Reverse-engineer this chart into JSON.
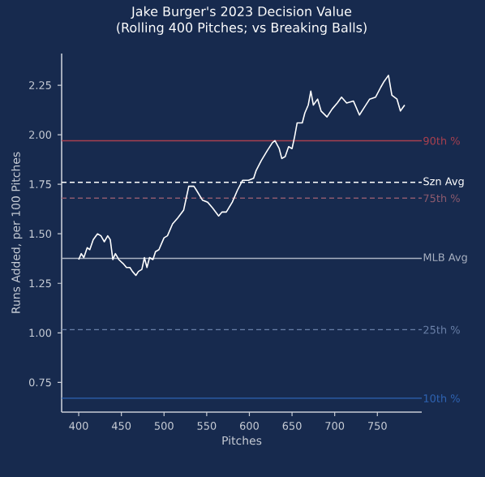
{
  "chart_data": {
    "type": "line",
    "title": "Jake Burger's 2023 Decision Value",
    "subtitle": "(Rolling 400 Pitches; vs Breaking Balls)",
    "xlabel": "Pitches",
    "ylabel": "Runs Added, per 100 Pitches",
    "series": [
      {
        "color": "#ffffff",
        "x": [
          400,
          403,
          406,
          410,
          413,
          417,
          422,
          426,
          430,
          434,
          437,
          440,
          443,
          447,
          452,
          456,
          460,
          463,
          467,
          470,
          474,
          477,
          480,
          483,
          487,
          490,
          494,
          497,
          500,
          504,
          510,
          516,
          523,
          526,
          529,
          535,
          538,
          545,
          551,
          557,
          564,
          568,
          573,
          580,
          586,
          592,
          599,
          605,
          608,
          614,
          621,
          627,
          630,
          635,
          638,
          642,
          646,
          650,
          653,
          656,
          662,
          665,
          669,
          672,
          675,
          680,
          684,
          691,
          697,
          703,
          708,
          714,
          722,
          729,
          735,
          741,
          748,
          754,
          758,
          763,
          767,
          773,
          777,
          782
        ],
        "values": [
          1.37,
          1.4,
          1.38,
          1.43,
          1.42,
          1.47,
          1.5,
          1.49,
          1.46,
          1.49,
          1.47,
          1.37,
          1.4,
          1.37,
          1.35,
          1.33,
          1.33,
          1.31,
          1.29,
          1.31,
          1.32,
          1.38,
          1.33,
          1.38,
          1.37,
          1.41,
          1.42,
          1.45,
          1.48,
          1.49,
          1.55,
          1.58,
          1.62,
          1.68,
          1.74,
          1.74,
          1.72,
          1.67,
          1.66,
          1.63,
          1.59,
          1.61,
          1.61,
          1.66,
          1.72,
          1.77,
          1.77,
          1.78,
          1.82,
          1.87,
          1.92,
          1.96,
          1.97,
          1.93,
          1.88,
          1.89,
          1.94,
          1.93,
          1.99,
          2.06,
          2.06,
          2.11,
          2.15,
          2.22,
          2.15,
          2.18,
          2.12,
          2.09,
          2.13,
          2.16,
          2.19,
          2.16,
          2.17,
          2.1,
          2.14,
          2.18,
          2.19,
          2.24,
          2.27,
          2.3,
          2.2,
          2.18,
          2.12,
          2.15
        ]
      }
    ],
    "xlim": [
      380,
      802
    ],
    "ylim": [
      0.6,
      2.41
    ],
    "xticks": [
      400,
      450,
      500,
      550,
      600,
      650,
      700,
      750
    ],
    "yticks": [
      {
        "value": 0.75,
        "label": "0.75"
      },
      {
        "value": 1.0,
        "label": "1.00"
      },
      {
        "value": 1.25,
        "label": "1.25"
      },
      {
        "value": 1.5,
        "label": "1.50"
      },
      {
        "value": 1.75,
        "label": "1.75"
      },
      {
        "value": 2.0,
        "label": "2.00"
      },
      {
        "value": 2.25,
        "label": "2.25"
      }
    ],
    "ref_lines": [
      {
        "axis": "y",
        "value": 1.97,
        "label": "90th %",
        "color": "#a8404f",
        "line_style": "solid"
      },
      {
        "axis": "y",
        "value": 1.76,
        "label": "Szn Avg",
        "color": "#ffffff",
        "line_style": "dashed"
      },
      {
        "axis": "y",
        "value": 1.68,
        "label": "75th %",
        "color": "#8c5a6e",
        "line_style": "dashed"
      },
      {
        "axis": "y",
        "value": 1.376,
        "label": "MLB Avg",
        "color": "#aab2c2",
        "line_style": "solid"
      },
      {
        "axis": "y",
        "value": 1.016,
        "label": "25th %",
        "color": "#6a80a8",
        "line_style": "dashed"
      },
      {
        "axis": "y",
        "value": 0.67,
        "label": "10th %",
        "color": "#2f64b4",
        "line_style": "solid"
      }
    ],
    "grid": false,
    "marker": "none",
    "line_style": "solid"
  }
}
